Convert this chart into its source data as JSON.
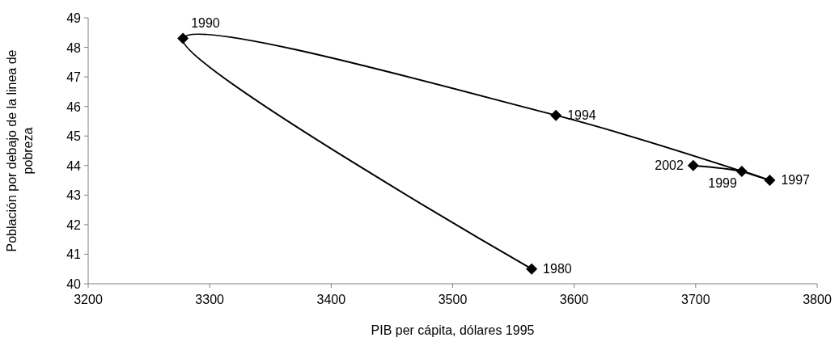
{
  "chart_data": {
    "type": "line",
    "xlabel": "PIB per cápita, dólares 1995",
    "ylabel": "Población por debajo de la linea de pobreza",
    "x": [
      3565,
      3278,
      3585,
      3761,
      3738,
      3698
    ],
    "series": [
      {
        "color": "#000000",
        "values": [
          40.5,
          48.3,
          45.7,
          43.5,
          43.8,
          44.0
        ]
      }
    ],
    "marker": "diamond",
    "line_style": "solid",
    "grid": false,
    "xlim": [
      3200,
      3800
    ],
    "xticks": [
      3200,
      3300,
      3400,
      3500,
      3600,
      3700,
      3800
    ],
    "ylim": [
      40,
      49
    ],
    "yticks": [
      40,
      41,
      42,
      43,
      44,
      45,
      46,
      47,
      48,
      49
    ],
    "annotations": [
      {
        "text": "1980",
        "x": 3565,
        "y": 40.5
      },
      {
        "text": "1990",
        "x": 3278,
        "y": 48.3
      },
      {
        "text": "1994",
        "x": 3585,
        "y": 45.7
      },
      {
        "text": "1997",
        "x": 3761,
        "y": 43.5
      },
      {
        "text": "1999",
        "x": 3738,
        "y": 43.8
      },
      {
        "text": "2002",
        "x": 3698,
        "y": 44.0
      }
    ]
  }
}
